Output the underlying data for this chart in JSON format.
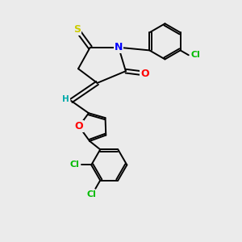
{
  "bg_color": "#ebebeb",
  "atom_colors": {
    "S": "#cccc00",
    "N": "#0000ff",
    "O": "#ff0000",
    "Cl": "#00bb00",
    "C": "#000000",
    "H": "#00aaaa"
  },
  "bond_color": "#000000",
  "fig_size": [
    3.0,
    3.0
  ],
  "dpi": 100
}
